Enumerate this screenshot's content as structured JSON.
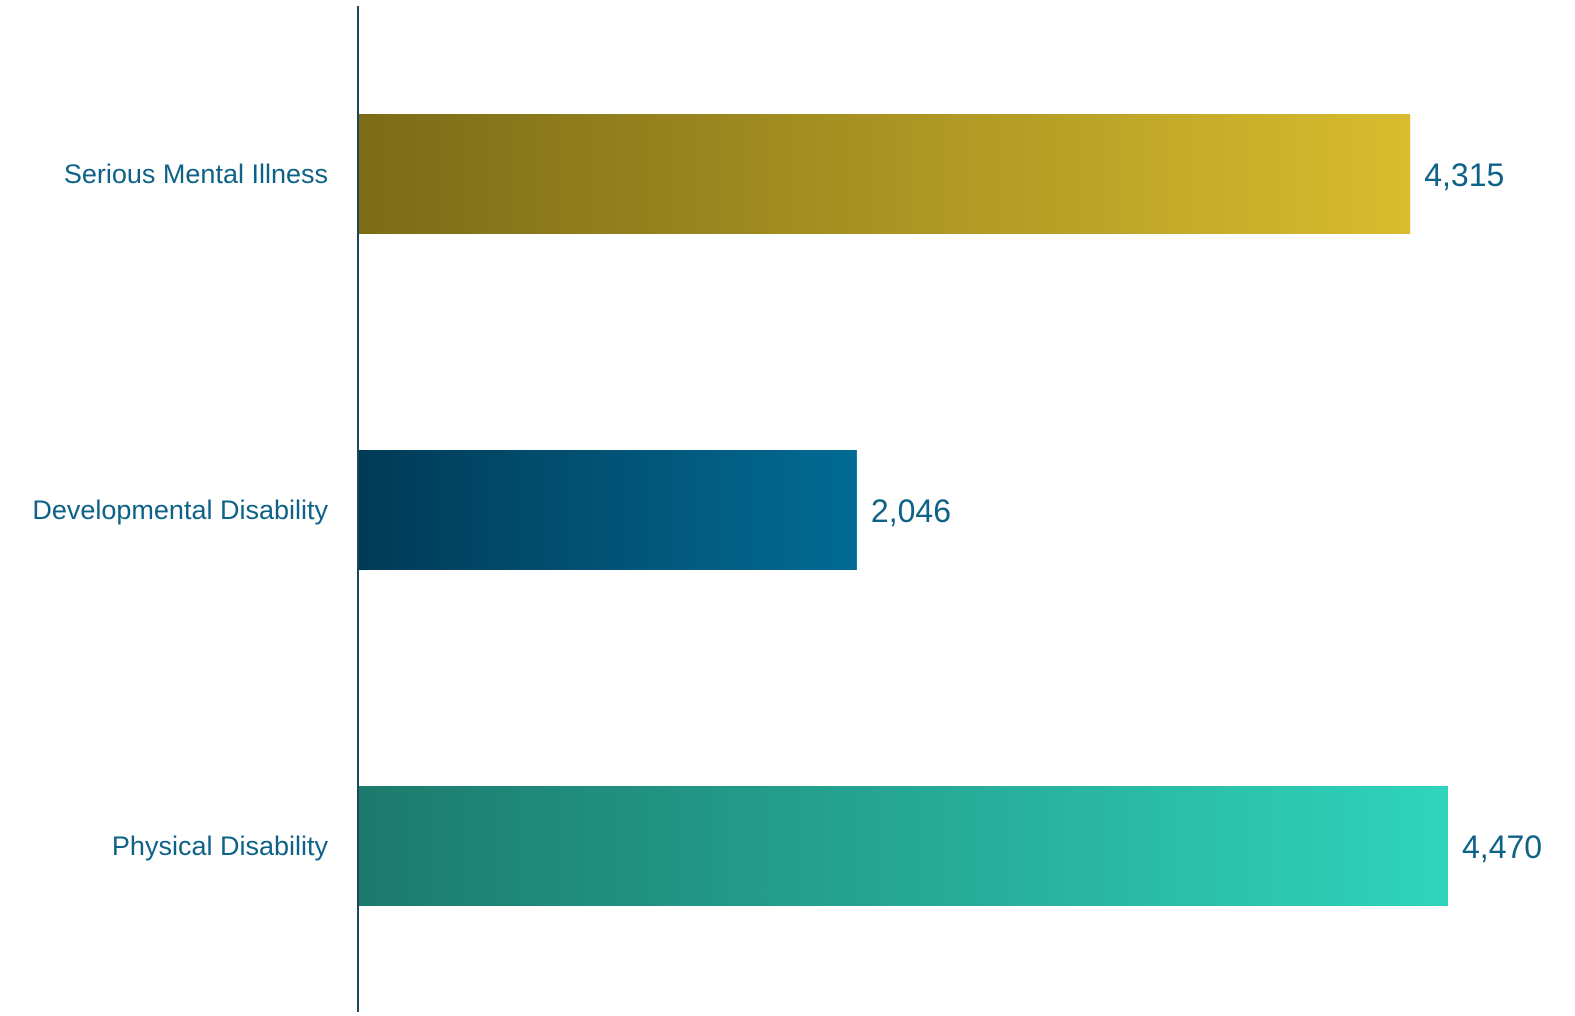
{
  "chart_data": {
    "type": "bar",
    "orientation": "horizontal",
    "categories": [
      "Serious Mental Illness",
      "Developmental Disability",
      "Physical Disability"
    ],
    "values": [
      4315,
      2046,
      4470
    ],
    "value_labels": [
      "4,315",
      "2,046",
      "4,470"
    ],
    "title": "",
    "xlabel": "",
    "ylabel": "",
    "xlim": [
      0,
      4600
    ],
    "grid": false,
    "legend": "none",
    "bar_gradients": [
      {
        "from": "#7b6b18",
        "to": "#d8bc2e"
      },
      {
        "from": "#013a56",
        "to": "#026b94"
      },
      {
        "from": "#1c7a6c",
        "to": "#30d4bc"
      }
    ],
    "axis_color": "#1d4758",
    "label_color": "#0e6288"
  }
}
